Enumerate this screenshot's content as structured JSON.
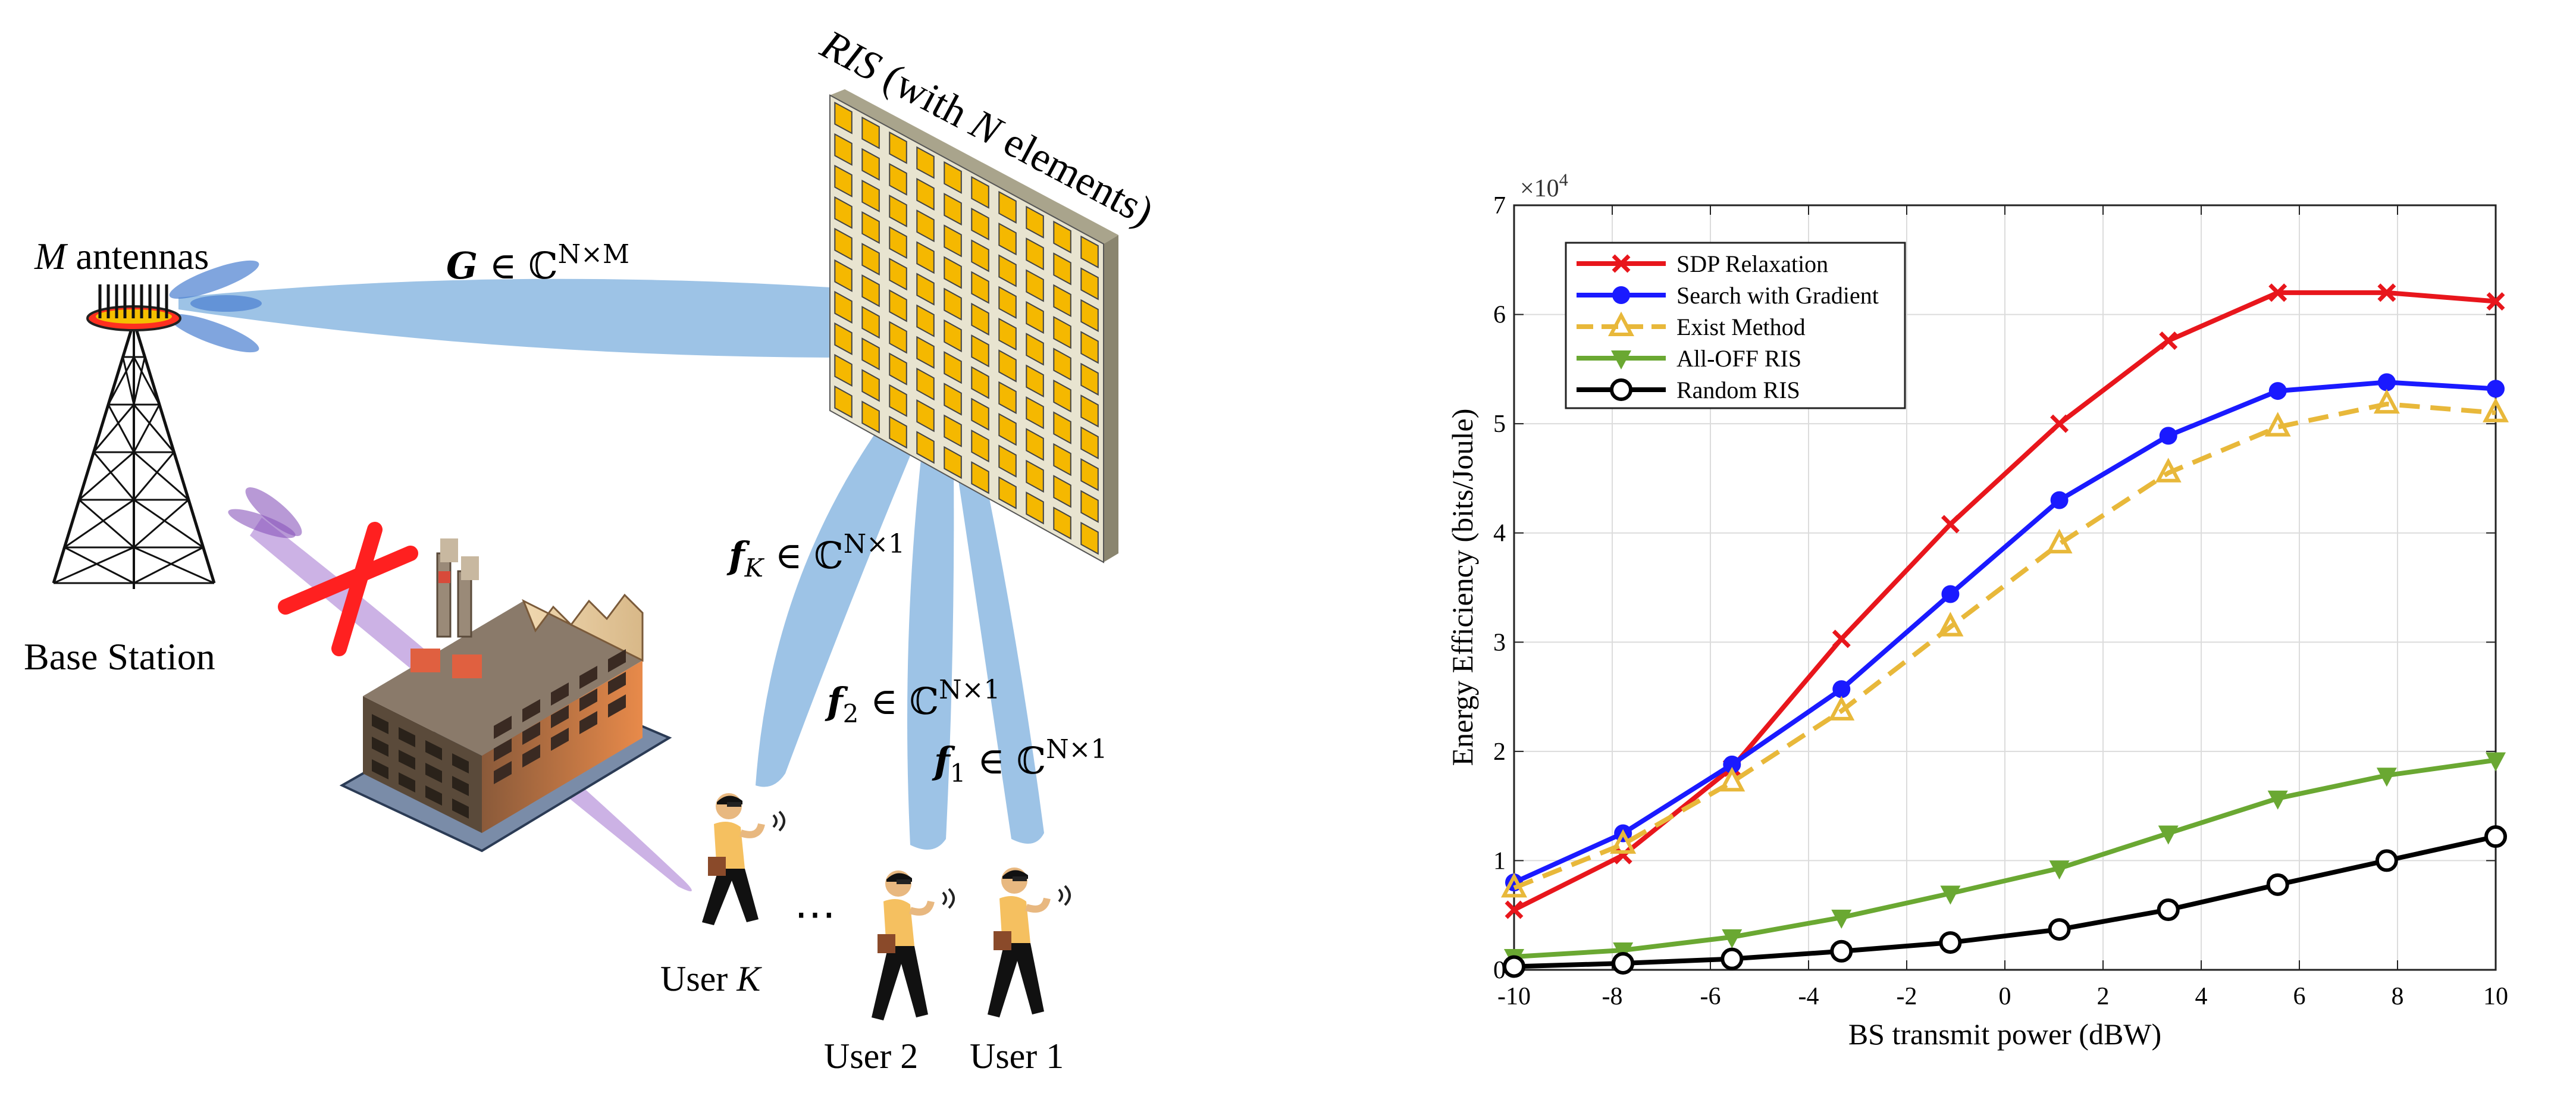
{
  "diagram": {
    "bs_antennas_var": "M",
    "bs_antennas_text": " antennas",
    "bs_label": "Base Station",
    "ris_title_var": "RIS",
    "ris_title_mid": " (with ",
    "ris_title_var2": "N",
    "ris_title_end": " elements)",
    "g_var": "G",
    "g_rest": " ∈ ℂ",
    "g_sup": "N×M",
    "fK_var": "f",
    "fK_sub": "K",
    "fK_rest": " ∈ ℂ",
    "fK_sup": "N×1",
    "f2_var": "f",
    "f2_sub": "2",
    "f2_rest": " ∈ ℂ",
    "f2_sup": "N×1",
    "f1_var": "f",
    "f1_sub": "1",
    "f1_rest": " ∈ ℂ",
    "f1_sup": "N×1",
    "userK_text": "User ",
    "userK_var": "K",
    "user2": "User 2",
    "user1": "User 1",
    "dots": "⋯",
    "colors": {
      "beam_blue": "#5b9bd5",
      "beam_purple": "#9966cc",
      "block_red": "#ff2020",
      "ris_element": "#f5b800",
      "ris_panel": "#e8e4d0"
    }
  },
  "chart_data": {
    "type": "line",
    "xlabel": "BS transmit power (dBW)",
    "ylabel": "Energy Efficiency (bits/Joule)",
    "exponent_label": "×10",
    "exponent_power": "4",
    "xlim": [
      -10,
      10
    ],
    "ylim": [
      0,
      7
    ],
    "xticks": [
      "-10",
      "-8",
      "-6",
      "-4",
      "-2",
      "0",
      "2",
      "4",
      "6",
      "8",
      "10"
    ],
    "yticks": [
      "0",
      "1",
      "2",
      "3",
      "4",
      "5",
      "6",
      "7"
    ],
    "grid": true,
    "legend_position": "top-left",
    "x": [
      -10,
      -7.78,
      -5.56,
      -3.33,
      -1.11,
      1.11,
      3.33,
      5.56,
      7.78,
      10
    ],
    "series": [
      {
        "name": "SDP Relaxation",
        "color": "#e8161c",
        "marker": "x",
        "dashed": false,
        "values": [
          0.55,
          1.05,
          1.85,
          3.03,
          4.08,
          5.0,
          5.76,
          6.2,
          6.2,
          6.12
        ]
      },
      {
        "name": "Search with Gradient",
        "color": "#1a1aff",
        "marker": "circle",
        "dashed": false,
        "values": [
          0.8,
          1.25,
          1.88,
          2.57,
          3.44,
          4.3,
          4.89,
          5.3,
          5.38,
          5.32
        ]
      },
      {
        "name": "Exist Method",
        "color": "#e8b83a",
        "marker": "triangle-up",
        "dashed": true,
        "values": [
          0.75,
          1.15,
          1.72,
          2.37,
          3.14,
          3.9,
          4.55,
          4.97,
          5.18,
          5.1
        ]
      },
      {
        "name": "All-OFF RIS",
        "color": "#6aa832",
        "marker": "triangle-down",
        "dashed": false,
        "values": [
          0.12,
          0.18,
          0.3,
          0.48,
          0.7,
          0.93,
          1.25,
          1.57,
          1.78,
          1.92
        ]
      },
      {
        "name": "Random RIS",
        "color": "#000000",
        "marker": "circle-open",
        "dashed": false,
        "values": [
          0.03,
          0.06,
          0.1,
          0.17,
          0.25,
          0.37,
          0.55,
          0.78,
          1.0,
          1.22
        ]
      }
    ]
  }
}
